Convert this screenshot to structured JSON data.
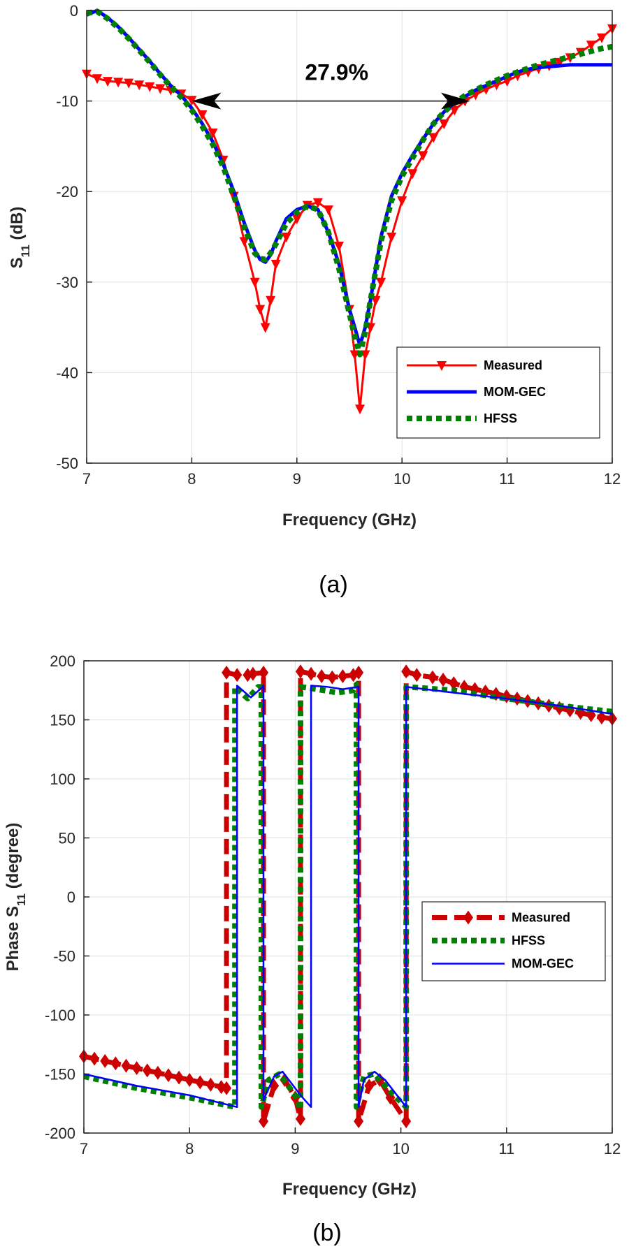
{
  "chart_data": [
    {
      "id": "a",
      "type": "line",
      "caption": "(a)",
      "xlabel": "Frequency (GHz)",
      "ylabel": "S11 (dB)",
      "xlim": [
        7,
        12
      ],
      "ylim": [
        -50,
        0
      ],
      "xticks": [
        7,
        8,
        9,
        10,
        11,
        12
      ],
      "yticks": [
        0,
        -10,
        -20,
        -30,
        -40,
        -50
      ],
      "grid": true,
      "legend_position": "lower-right",
      "annotation": {
        "text": "27.9%",
        "type": "double-arrow",
        "from": [
          8.0,
          -10
        ],
        "to": [
          10.65,
          -10
        ]
      },
      "series": [
        {
          "name": "Measured",
          "color": "#ff0000",
          "style": "solid-marker-triangle-down",
          "x": [
            7.0,
            7.1,
            7.2,
            7.3,
            7.4,
            7.5,
            7.6,
            7.7,
            7.8,
            7.9,
            8.0,
            8.1,
            8.2,
            8.3,
            8.4,
            8.5,
            8.6,
            8.65,
            8.7,
            8.75,
            8.8,
            8.9,
            9.0,
            9.1,
            9.2,
            9.3,
            9.4,
            9.5,
            9.55,
            9.6,
            9.65,
            9.7,
            9.75,
            9.8,
            9.9,
            10.0,
            10.1,
            10.2,
            10.3,
            10.4,
            10.5,
            10.6,
            10.7,
            10.8,
            10.9,
            11.0,
            11.1,
            11.2,
            11.3,
            11.4,
            11.5,
            11.6,
            11.7,
            11.8,
            11.9,
            12.0
          ],
          "y": [
            -7,
            -7.5,
            -7.8,
            -7.9,
            -8,
            -8.2,
            -8.4,
            -8.6,
            -8.8,
            -9.2,
            -9.9,
            -11.5,
            -13.5,
            -16.5,
            -20.5,
            -25.5,
            -30,
            -33,
            -35,
            -32,
            -28,
            -25,
            -23,
            -21.5,
            -21.2,
            -22,
            -26,
            -33,
            -38,
            -44,
            -38,
            -35,
            -32,
            -30,
            -25,
            -21,
            -18,
            -16,
            -14,
            -12.5,
            -11,
            -10,
            -9.3,
            -8.7,
            -8.2,
            -7.8,
            -7.2,
            -6.8,
            -6.4,
            -6.1,
            -5.7,
            -5.2,
            -4.6,
            -3.8,
            -3,
            -2
          ]
        },
        {
          "name": "MOM-GEC",
          "color": "#0000ff",
          "style": "solid-thick",
          "x": [
            7.0,
            7.1,
            7.2,
            7.3,
            7.4,
            7.5,
            7.6,
            7.7,
            7.8,
            7.9,
            8.0,
            8.1,
            8.2,
            8.3,
            8.4,
            8.5,
            8.6,
            8.65,
            8.7,
            8.75,
            8.8,
            8.9,
            9.0,
            9.1,
            9.2,
            9.3,
            9.4,
            9.5,
            9.55,
            9.6,
            9.65,
            9.7,
            9.8,
            9.9,
            10.0,
            10.1,
            10.2,
            10.3,
            10.4,
            10.5,
            10.6,
            10.7,
            10.8,
            10.9,
            11.0,
            11.1,
            11.2,
            11.3,
            11.4,
            11.5,
            11.6,
            11.7,
            11.8,
            11.9,
            12.0
          ],
          "y": [
            -0.5,
            0,
            -0.8,
            -1.8,
            -3,
            -4.3,
            -5.6,
            -7,
            -8.3,
            -9.4,
            -10.8,
            -12.5,
            -14.5,
            -17,
            -20,
            -23.5,
            -26.5,
            -27.5,
            -27.8,
            -27,
            -25.5,
            -23,
            -22,
            -21.6,
            -22,
            -24.5,
            -28,
            -33,
            -35,
            -37,
            -35,
            -32,
            -25,
            -20.5,
            -18,
            -16,
            -14.2,
            -12.5,
            -11.2,
            -10.2,
            -9.5,
            -8.8,
            -8.3,
            -7.8,
            -7.3,
            -6.8,
            -6.5,
            -6.3,
            -6.2,
            -6.1,
            -6,
            -6,
            -6,
            -6,
            -6
          ]
        },
        {
          "name": "HFSS",
          "color": "#008000",
          "style": "dotted-thick",
          "x": [
            7.0,
            7.1,
            7.2,
            7.3,
            7.4,
            7.5,
            7.6,
            7.7,
            7.8,
            7.9,
            8.0,
            8.1,
            8.2,
            8.3,
            8.4,
            8.5,
            8.6,
            8.65,
            8.7,
            8.75,
            8.8,
            8.9,
            9.0,
            9.1,
            9.2,
            9.3,
            9.4,
            9.5,
            9.55,
            9.6,
            9.65,
            9.7,
            9.8,
            9.9,
            10.0,
            10.1,
            10.2,
            10.3,
            10.4,
            10.5,
            10.6,
            10.7,
            10.8,
            10.9,
            11.0,
            11.1,
            11.2,
            11.3,
            11.4,
            11.5,
            11.6,
            11.7,
            11.8,
            11.9,
            12.0
          ],
          "y": [
            -0.3,
            -0.1,
            -0.9,
            -1.9,
            -3.1,
            -4.4,
            -5.7,
            -7.1,
            -8.4,
            -9.6,
            -11,
            -12.8,
            -14.8,
            -17.3,
            -20.5,
            -24,
            -26.8,
            -27.4,
            -27.5,
            -26.8,
            -25.8,
            -23.5,
            -22.3,
            -21.6,
            -22,
            -24.5,
            -28.5,
            -33.5,
            -36,
            -38,
            -35.5,
            -32,
            -25.5,
            -21,
            -18.3,
            -16.3,
            -14.3,
            -12.5,
            -11.2,
            -10.2,
            -9.4,
            -8.8,
            -8.2,
            -7.7,
            -7.2,
            -6.8,
            -6.4,
            -6,
            -5.7,
            -5.4,
            -5.1,
            -4.8,
            -4.5,
            -4.2,
            -4
          ]
        }
      ]
    },
    {
      "id": "b",
      "type": "line",
      "caption": "(b)",
      "xlabel": "Frequency (GHz)",
      "ylabel": "Phase S11 (degree)",
      "xlim": [
        7,
        12
      ],
      "ylim": [
        -200,
        200
      ],
      "xticks": [
        7,
        8,
        9,
        10,
        11,
        12
      ],
      "yticks": [
        200,
        150,
        100,
        50,
        0,
        -50,
        -100,
        -150,
        -200
      ],
      "grid": true,
      "legend_position": "center-right",
      "series": [
        {
          "name": "Measured",
          "color": "#cc0000",
          "style": "dashed-thick-marker-diamond",
          "x": [
            7.0,
            7.1,
            7.2,
            7.3,
            7.4,
            7.5,
            7.6,
            7.7,
            7.8,
            7.9,
            8.0,
            8.1,
            8.2,
            8.3,
            8.35,
            8.35,
            8.45,
            8.55,
            8.6,
            8.7,
            8.7,
            8.8,
            8.9,
            9.0,
            9.05,
            9.05,
            9.15,
            9.25,
            9.35,
            9.45,
            9.55,
            9.6,
            9.6,
            9.7,
            9.8,
            9.9,
            10.05,
            10.05,
            10.15,
            10.3,
            10.4,
            10.5,
            10.6,
            10.7,
            10.8,
            10.9,
            11.0,
            11.1,
            11.2,
            11.3,
            11.4,
            11.5,
            11.6,
            11.7,
            11.8,
            11.9,
            12.0
          ],
          "y": [
            -135,
            -137,
            -139,
            -141,
            -143,
            -145,
            -147,
            -149,
            -151,
            -153,
            -155,
            -157,
            -159,
            -161,
            -162,
            190,
            188,
            188,
            189,
            190,
            -190,
            -160,
            -155,
            -170,
            -188,
            191,
            189,
            187,
            186,
            187,
            188,
            190,
            -190,
            -160,
            -155,
            -170,
            -190,
            191,
            188,
            186,
            184,
            181,
            178,
            176,
            174,
            172,
            170,
            168,
            166,
            164,
            162,
            160,
            158,
            156,
            154,
            152,
            151
          ]
        },
        {
          "name": "HFSS",
          "color": "#008000",
          "style": "dotted-thick",
          "x": [
            7.0,
            7.5,
            8.0,
            8.43,
            8.43,
            8.55,
            8.65,
            8.68,
            8.68,
            8.75,
            8.85,
            9.0,
            9.05,
            9.05,
            9.2,
            9.4,
            9.55,
            9.58,
            9.58,
            9.65,
            9.75,
            9.9,
            10.05,
            10.05,
            10.5,
            11.0,
            11.5,
            12.0
          ],
          "y": [
            -152,
            -162,
            -170,
            -178,
            178,
            168,
            178,
            178,
            -178,
            -155,
            -150,
            -168,
            -180,
            178,
            176,
            173,
            175,
            180,
            -178,
            -152,
            -150,
            -165,
            -178,
            178,
            175,
            168,
            162,
            157
          ]
        },
        {
          "name": "MOM-GEC",
          "color": "#0000ff",
          "style": "solid",
          "x": [
            7.0,
            7.5,
            8.0,
            8.45,
            8.45,
            8.58,
            8.68,
            8.7,
            8.7,
            8.8,
            8.88,
            9.05,
            9.15,
            9.15,
            9.3,
            9.45,
            9.6,
            9.6,
            9.65,
            9.75,
            9.85,
            10.05,
            10.05,
            10.5,
            11.0,
            11.5,
            12.0
          ],
          "y": [
            -150,
            -160,
            -168,
            -178,
            179,
            169,
            177,
            179,
            -172,
            -152,
            -148,
            -168,
            -178,
            179,
            178,
            176,
            178,
            -178,
            -155,
            -148,
            -155,
            -178,
            178,
            173,
            168,
            162,
            155
          ]
        }
      ]
    }
  ]
}
